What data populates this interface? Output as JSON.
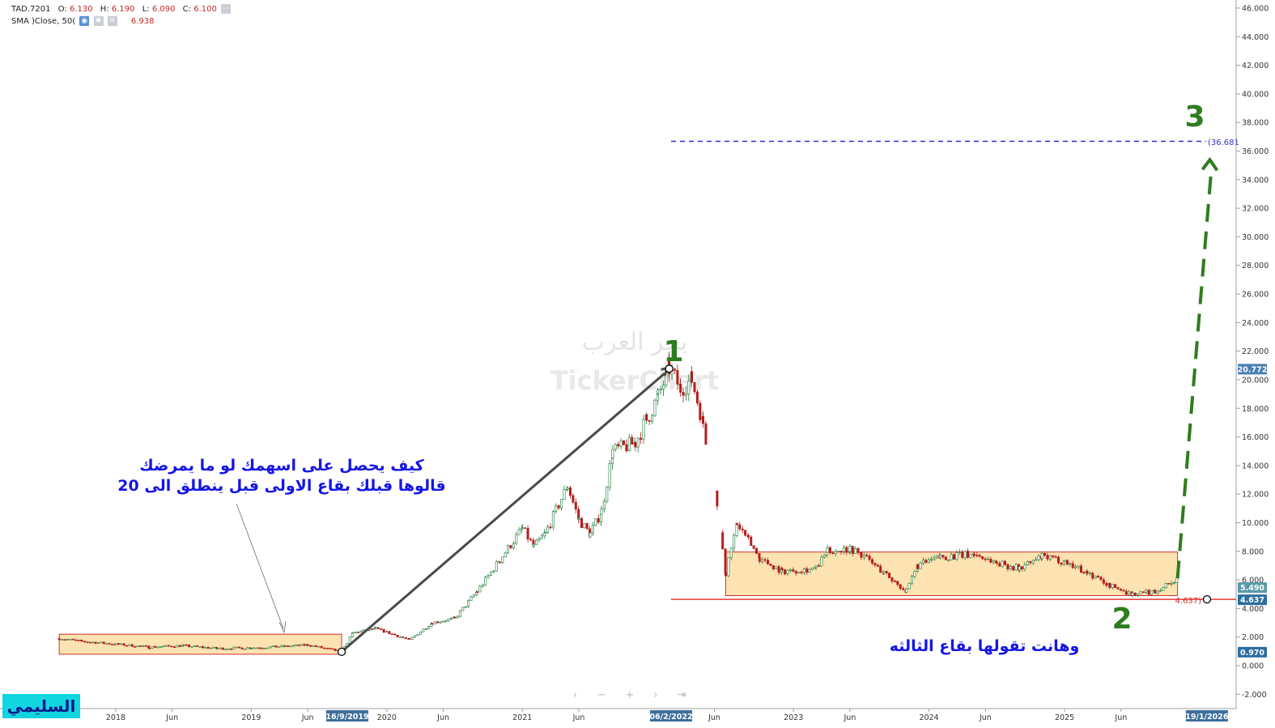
{
  "header": {
    "symbol": "TAD.7201",
    "open_label": "O:",
    "open": "6.130",
    "high_label": "H:",
    "high": "6.190",
    "low_label": "L:",
    "low": "6.090",
    "close_label": "C:",
    "close": "6.100",
    "sma_label": "SMA  )Close, 50(",
    "sma_value": "6.938"
  },
  "nav": {
    "controls": "‹ − + › ⇥",
    "first_icon": "first-icon"
  },
  "logo": {
    "text": "السليمي"
  },
  "watermark": {
    "line1": "بحر العرب",
    "line2": "TickerChart"
  },
  "annotations": {
    "text1_line1": "كيف يحصل على اسهمك لو ما يمرضك",
    "text1_line2": "قالوها قبلك بقاع الاولى قبل ينطلق الى 20",
    "text2": "وهانت تقولها بقاع الثالثه",
    "num1": "1",
    "num2": "2",
    "num3": "3",
    "level_upper": "(36.681",
    "level_lower": "4.637)"
  },
  "colors": {
    "up": "#1b7a3a",
    "down": "#b71c1c",
    "box_fill": "#fde3b1",
    "box_stroke": "#d32f2f",
    "annotation_blue": "#1515e6",
    "number_green": "#2e7d1f",
    "dash_blue": "#2a2ad6",
    "support_red": "#e53935",
    "axis_badge": "#4a7fb0"
  },
  "chart_data": {
    "type": "candlestick",
    "y_axis": {
      "range": [
        -3,
        46
      ],
      "ticks": [
        "-2.000",
        "0.000",
        "2.000",
        "4.000",
        "6.000",
        "8.000",
        "10.000",
        "12.000",
        "14.000",
        "16.000",
        "18.000",
        "20.000",
        "22.000",
        "24.000",
        "26.000",
        "28.000",
        "30.000",
        "32.000",
        "34.000",
        "36.000",
        "38.000",
        "40.000",
        "42.000",
        "44.000",
        "46.000"
      ],
      "badges": [
        {
          "label": "20.772",
          "value": 20.772,
          "color": "#4a7fb0"
        },
        {
          "label": "5.490",
          "value": 5.49,
          "color": "#5a9aa8"
        },
        {
          "label": "4.637",
          "value": 4.637,
          "color": "#2c6ea0"
        },
        {
          "label": "0.970",
          "value": 0.97,
          "color": "#2c6ea0"
        }
      ]
    },
    "x_axis": {
      "range": [
        "2017-08",
        "2026-03"
      ],
      "ticks": [
        {
          "label": "2018",
          "date": "2018-01"
        },
        {
          "label": "Jun",
          "date": "2018-06"
        },
        {
          "label": "2019",
          "date": "2019-01"
        },
        {
          "label": "Jun",
          "date": "2019-06"
        },
        {
          "label": "2020",
          "date": "2020-01"
        },
        {
          "label": "Jun",
          "date": "2020-06"
        },
        {
          "label": "2021",
          "date": "2021-01"
        },
        {
          "label": "Jun",
          "date": "2021-06"
        },
        {
          "label": "Jun",
          "date": "2022-06"
        },
        {
          "label": "2023",
          "date": "2023-01"
        },
        {
          "label": "Jun",
          "date": "2023-06"
        },
        {
          "label": "2024",
          "date": "2024-01"
        },
        {
          "label": "Jun",
          "date": "2024-06"
        },
        {
          "label": "2025",
          "date": "2025-01"
        },
        {
          "label": "Jun",
          "date": "2025-06"
        }
      ],
      "date_badges": [
        {
          "label": "16/9/2019",
          "date": "2019-09-16"
        },
        {
          "label": "06/2/2022",
          "date": "2022-02-06"
        },
        {
          "label": "19/1/2026",
          "date": "2026-01-19"
        }
      ]
    },
    "price_path": [
      [
        "2017-08",
        1.9
      ],
      [
        "2017-10",
        1.7
      ],
      [
        "2018-01",
        1.5
      ],
      [
        "2018-04",
        1.3
      ],
      [
        "2018-07",
        1.4
      ],
      [
        "2018-10",
        1.2
      ],
      [
        "2019-01",
        1.25
      ],
      [
        "2019-04",
        1.35
      ],
      [
        "2019-06",
        1.45
      ],
      [
        "2019-09",
        0.97
      ],
      [
        "2019-10",
        2.3
      ],
      [
        "2019-12",
        2.6
      ],
      [
        "2020-03",
        1.8
      ],
      [
        "2020-05",
        3.0
      ],
      [
        "2020-07",
        3.3
      ],
      [
        "2020-09",
        5.2
      ],
      [
        "2020-11",
        7.4
      ],
      [
        "2021-01",
        9.6
      ],
      [
        "2021-02",
        8.3
      ],
      [
        "2021-03",
        9.2
      ],
      [
        "2021-05",
        12.6
      ],
      [
        "2021-06",
        10.2
      ],
      [
        "2021-07",
        9.2
      ],
      [
        "2021-08",
        10.8
      ],
      [
        "2021-09",
        15.0
      ],
      [
        "2021-11",
        15.6
      ],
      [
        "2021-12",
        17.2
      ],
      [
        "2022-01",
        18.8
      ],
      [
        "2022-02",
        20.772
      ],
      [
        "2022-03",
        19.4
      ],
      [
        "2022-04",
        20.0
      ],
      [
        "2022-05",
        17.0
      ],
      [
        "2022-06",
        12.5
      ],
      [
        "2022-07",
        6.5
      ],
      [
        "2022-08",
        9.9
      ],
      [
        "2022-09",
        8.8
      ],
      [
        "2022-10",
        7.5
      ],
      [
        "2022-12",
        6.6
      ],
      [
        "2023-03",
        6.8
      ],
      [
        "2023-04",
        8.0
      ],
      [
        "2023-06",
        8.2
      ],
      [
        "2023-07",
        7.8
      ],
      [
        "2023-09",
        6.5
      ],
      [
        "2023-11",
        5.2
      ],
      [
        "2023-12",
        7.0
      ],
      [
        "2024-02",
        7.6
      ],
      [
        "2024-05",
        7.8
      ],
      [
        "2024-07",
        7.2
      ],
      [
        "2024-09",
        6.8
      ],
      [
        "2024-11",
        7.6
      ],
      [
        "2025-01",
        7.3
      ],
      [
        "2025-03",
        6.5
      ],
      [
        "2025-05",
        5.6
      ],
      [
        "2025-07",
        5.0
      ],
      [
        "2025-09",
        5.2
      ],
      [
        "2025-11",
        6.1
      ]
    ],
    "boxes": [
      {
        "from": "2017-08",
        "to": "2019-09",
        "low": 0.8,
        "high": 2.2
      },
      {
        "from": "2022-07",
        "to": "2025-11",
        "low": 4.9,
        "high": 7.95
      }
    ],
    "levels": [
      {
        "value": 36.681,
        "style": "dashed",
        "label": "(36.681"
      },
      {
        "value": 4.637,
        "style": "solid",
        "label": "4.637)"
      }
    ],
    "trend_arrows": [
      {
        "from": [
          "2019-09",
          0.97
        ],
        "to": [
          "2022-02",
          20.772
        ],
        "kind": "solid"
      },
      {
        "from": [
          "2025-11",
          6.1
        ],
        "to": [
          "2026-01",
          35.5
        ],
        "kind": "dashed"
      }
    ]
  }
}
